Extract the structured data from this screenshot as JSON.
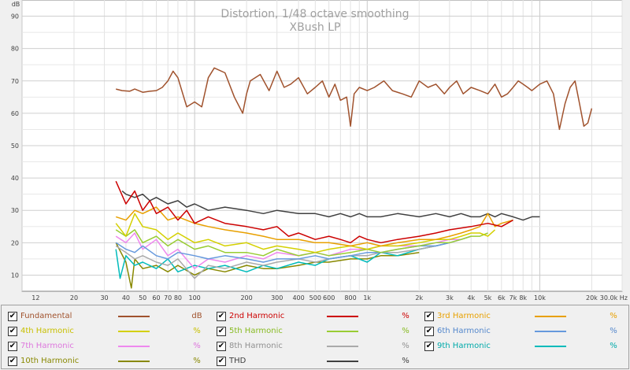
{
  "chart_data": {
    "type": "line",
    "title": "Distortion, 1/48 octave smoothing",
    "subtitle": "XBush LP",
    "y_unit": "dB",
    "x_unit": "Hz",
    "xscale": "log",
    "xlim": [
      10,
      30000
    ],
    "ylim": [
      5,
      95
    ],
    "grid": true,
    "y_ticks": [
      "10",
      "20",
      "30",
      "40",
      "50",
      "60",
      "70",
      "80",
      "90"
    ],
    "x_ticks": [
      "12",
      "20",
      "30",
      "40",
      "50",
      "60",
      "70",
      "80",
      "100",
      "200",
      "300",
      "400",
      "500",
      "600",
      "800",
      "1k",
      "2k",
      "3k",
      "4k",
      "5k",
      "6k",
      "7k",
      "8k",
      "10k",
      "20k",
      "30.0k Hz"
    ],
    "series": [
      {
        "name": "Fundamental",
        "unit": "dB",
        "color": "#a0522d",
        "visible": true,
        "x": [
          35,
          38,
          42,
          45,
          50,
          55,
          60,
          65,
          70,
          75,
          80,
          90,
          100,
          110,
          120,
          130,
          150,
          170,
          190,
          200,
          210,
          240,
          270,
          300,
          330,
          360,
          400,
          450,
          500,
          550,
          600,
          650,
          700,
          760,
          800,
          840,
          900,
          1000,
          1100,
          1250,
          1400,
          1600,
          1800,
          2000,
          2250,
          2500,
          2800,
          3000,
          3300,
          3600,
          4000,
          4500,
          5000,
          5500,
          6000,
          6500,
          7000,
          7500,
          8000,
          8500,
          9000,
          10000,
          11000,
          12000,
          13000,
          14000,
          15000,
          16000,
          17000,
          18000,
          19000,
          20000
        ],
        "y": [
          67.5,
          67,
          66.8,
          67.5,
          66.5,
          66.8,
          67,
          68,
          70,
          73,
          71,
          62,
          63.5,
          62,
          71,
          74,
          72.5,
          65,
          60,
          66,
          70,
          72,
          67,
          73,
          68,
          69,
          71,
          66,
          68,
          70,
          65,
          69,
          64,
          65,
          56,
          66,
          68,
          67,
          68,
          70,
          67,
          66,
          65,
          70,
          68,
          69,
          66,
          68,
          70,
          66,
          68,
          67,
          66,
          69,
          65,
          66,
          68,
          70,
          69,
          68,
          67,
          69,
          70,
          66,
          55,
          63,
          68,
          70,
          63,
          56,
          57,
          61.5
        ]
      },
      {
        "name": "2nd Harmonic",
        "unit": "%",
        "color": "#cc0000",
        "visible": true,
        "x": [
          35,
          40,
          45,
          50,
          55,
          60,
          70,
          80,
          90,
          100,
          120,
          150,
          200,
          250,
          300,
          350,
          400,
          500,
          600,
          700,
          800,
          900,
          1000,
          1200,
          1500,
          2000,
          2500,
          3000,
          4000,
          5000,
          6000,
          7000
        ],
        "y": [
          39,
          32,
          36,
          30,
          33,
          29,
          31,
          27,
          30,
          26,
          28,
          26,
          25,
          24,
          25,
          22,
          23,
          21,
          22,
          21,
          20,
          22,
          21,
          20,
          21,
          22,
          23,
          24,
          25,
          26,
          25,
          27
        ]
      },
      {
        "name": "3rd Harmonic",
        "unit": "%",
        "color": "#e8a000",
        "visible": true,
        "x": [
          35,
          40,
          45,
          50,
          60,
          70,
          80,
          100,
          120,
          150,
          200,
          250,
          300,
          400,
          500,
          600,
          800,
          1000,
          1200,
          1500,
          2000,
          2500,
          3000,
          3500,
          4000,
          4500,
          5000,
          5500,
          6000,
          7000
        ],
        "y": [
          28,
          27,
          30,
          29,
          31,
          27,
          28,
          26,
          25,
          24,
          23,
          22,
          21,
          21,
          20,
          20,
          19,
          20,
          19,
          20,
          21,
          21,
          22,
          23,
          24,
          25,
          29,
          25,
          26,
          27
        ]
      },
      {
        "name": "4th Harmonic",
        "unit": "%",
        "color": "#d4d000",
        "visible": true,
        "x": [
          35,
          40,
          45,
          50,
          60,
          70,
          80,
          100,
          120,
          150,
          200,
          250,
          300,
          400,
          500,
          600,
          800,
          1000,
          1200,
          1500,
          2000,
          2500,
          3000,
          3500,
          4000,
          4500,
          5000,
          5500
        ],
        "y": [
          26,
          22,
          29,
          25,
          24,
          21,
          23,
          20,
          21,
          19,
          20,
          18,
          19,
          18,
          17,
          18,
          19,
          18,
          19,
          19,
          20,
          21,
          21,
          22,
          23,
          23,
          22,
          24
        ]
      },
      {
        "name": "5th Harmonic",
        "unit": "%",
        "color": "#99cc33",
        "visible": true,
        "x": [
          35,
          40,
          45,
          50,
          60,
          70,
          80,
          100,
          120,
          150,
          200,
          250,
          300,
          400,
          500,
          600,
          800,
          1000,
          1200,
          1500,
          2000,
          2500,
          3000,
          3500,
          4000,
          4500,
          5000
        ],
        "y": [
          24,
          22,
          24,
          20,
          22,
          19,
          21,
          18,
          19,
          17,
          17,
          16,
          18,
          16,
          17,
          16,
          17,
          18,
          17,
          18,
          19,
          20,
          20,
          21,
          22,
          22,
          23
        ]
      },
      {
        "name": "6th Harmonic",
        "unit": "%",
        "color": "#6699dd",
        "visible": true,
        "x": [
          35,
          40,
          45,
          50,
          60,
          70,
          80,
          100,
          120,
          150,
          200,
          250,
          300,
          400,
          500,
          600,
          800,
          1000,
          1200,
          1500,
          2000,
          2500,
          3000,
          3500,
          4000
        ],
        "y": [
          20,
          18,
          17,
          19,
          16,
          15,
          17,
          16,
          15,
          16,
          15,
          14,
          15,
          15,
          16,
          15,
          16,
          17,
          17,
          18,
          19,
          19,
          20,
          21,
          22
        ]
      },
      {
        "name": "7th Harmonic",
        "unit": "%",
        "color": "#ee88ee",
        "visible": true,
        "x": [
          35,
          40,
          45,
          50,
          60,
          70,
          80,
          100,
          120,
          150,
          200,
          250,
          300,
          400,
          500,
          600,
          800,
          1000,
          1200,
          1500,
          2000,
          2500,
          3000,
          3500
        ],
        "y": [
          22,
          20,
          23,
          18,
          21,
          16,
          18,
          12,
          15,
          14,
          16,
          15,
          17,
          16,
          17,
          16,
          18,
          18,
          19,
          19,
          19,
          20,
          21,
          21
        ]
      },
      {
        "name": "8th Harmonic",
        "unit": "%",
        "color": "#aaaaaa",
        "visible": true,
        "x": [
          35,
          40,
          45,
          50,
          60,
          70,
          80,
          100,
          120,
          150,
          200,
          250,
          300,
          400,
          500,
          600,
          800,
          1000,
          1200,
          1500,
          2000,
          2500,
          3000
        ],
        "y": [
          19,
          17,
          15,
          16,
          14,
          13,
          15,
          9,
          13,
          12,
          14,
          13,
          14,
          15,
          14,
          15,
          16,
          16,
          17,
          17,
          18,
          19,
          20
        ]
      },
      {
        "name": "9th Harmonic",
        "unit": "%",
        "color": "#00bbbb",
        "visible": true,
        "x": [
          35,
          37,
          40,
          45,
          50,
          60,
          70,
          80,
          100,
          120,
          150,
          200,
          250,
          300,
          400,
          500,
          600,
          800,
          1000,
          1200,
          1500,
          2000,
          2500,
          3000
        ],
        "y": [
          18,
          9,
          16,
          13,
          14,
          12,
          15,
          11,
          13,
          12,
          13,
          11,
          13,
          12,
          14,
          13,
          15,
          16,
          14,
          17,
          16,
          18,
          19,
          20
        ]
      },
      {
        "name": "10th Harmonic",
        "unit": "%",
        "color": "#888800",
        "visible": true,
        "x": [
          35,
          40,
          43,
          45,
          50,
          60,
          70,
          80,
          100,
          120,
          150,
          200,
          250,
          300,
          400,
          500,
          600,
          800,
          1000,
          1200,
          1500,
          2000
        ],
        "y": [
          20,
          14,
          6,
          15,
          12,
          13,
          11,
          13,
          10,
          12,
          11,
          13,
          12,
          12,
          13,
          14,
          14,
          15,
          15,
          16,
          16,
          17
        ]
      },
      {
        "name": "THD",
        "unit": "%",
        "color": "#404040",
        "visible": true,
        "x": [
          38,
          40,
          45,
          50,
          55,
          60,
          70,
          80,
          90,
          100,
          120,
          150,
          200,
          250,
          300,
          400,
          500,
          600,
          700,
          800,
          900,
          1000,
          1200,
          1500,
          2000,
          2500,
          3000,
          3500,
          4000,
          4500,
          5000,
          5500,
          6000,
          7000,
          8000,
          9000,
          10000
        ],
        "y": [
          36,
          35,
          34,
          35,
          33,
          34,
          32,
          33,
          31,
          32,
          30,
          31,
          30,
          29,
          30,
          29,
          29,
          28,
          29,
          28,
          29,
          28,
          28,
          29,
          28,
          29,
          28,
          29,
          28,
          28,
          29,
          28,
          29,
          28,
          27,
          28,
          28
        ]
      }
    ]
  },
  "legend": {
    "items": [
      {
        "name": "Fundamental",
        "unit": "dB",
        "color": "#a0522d",
        "text_color": "#a0522d"
      },
      {
        "name": "2nd Harmonic",
        "unit": "%",
        "color": "#cc0000",
        "text_color": "#cc0000"
      },
      {
        "name": "3rd Harmonic",
        "unit": "%",
        "color": "#e8a000",
        "text_color": "#e8a000"
      },
      {
        "name": "4th Harmonic",
        "unit": "%",
        "color": "#d4d000",
        "text_color": "#c8c000"
      },
      {
        "name": "5th Harmonic",
        "unit": "%",
        "color": "#99cc33",
        "text_color": "#88bb22"
      },
      {
        "name": "6th Harmonic",
        "unit": "%",
        "color": "#6699dd",
        "text_color": "#5588cc"
      },
      {
        "name": "7th Harmonic",
        "unit": "%",
        "color": "#ee88ee",
        "text_color": "#dd77dd"
      },
      {
        "name": "8th Harmonic",
        "unit": "%",
        "color": "#aaaaaa",
        "text_color": "#909090"
      },
      {
        "name": "9th Harmonic",
        "unit": "%",
        "color": "#00bbbb",
        "text_color": "#00aaaa"
      },
      {
        "name": "10th Harmonic",
        "unit": "%",
        "color": "#888800",
        "text_color": "#888800"
      },
      {
        "name": "THD",
        "unit": "%",
        "color": "#404040",
        "text_color": "#404040"
      }
    ],
    "checkbox_mark": "✔"
  }
}
